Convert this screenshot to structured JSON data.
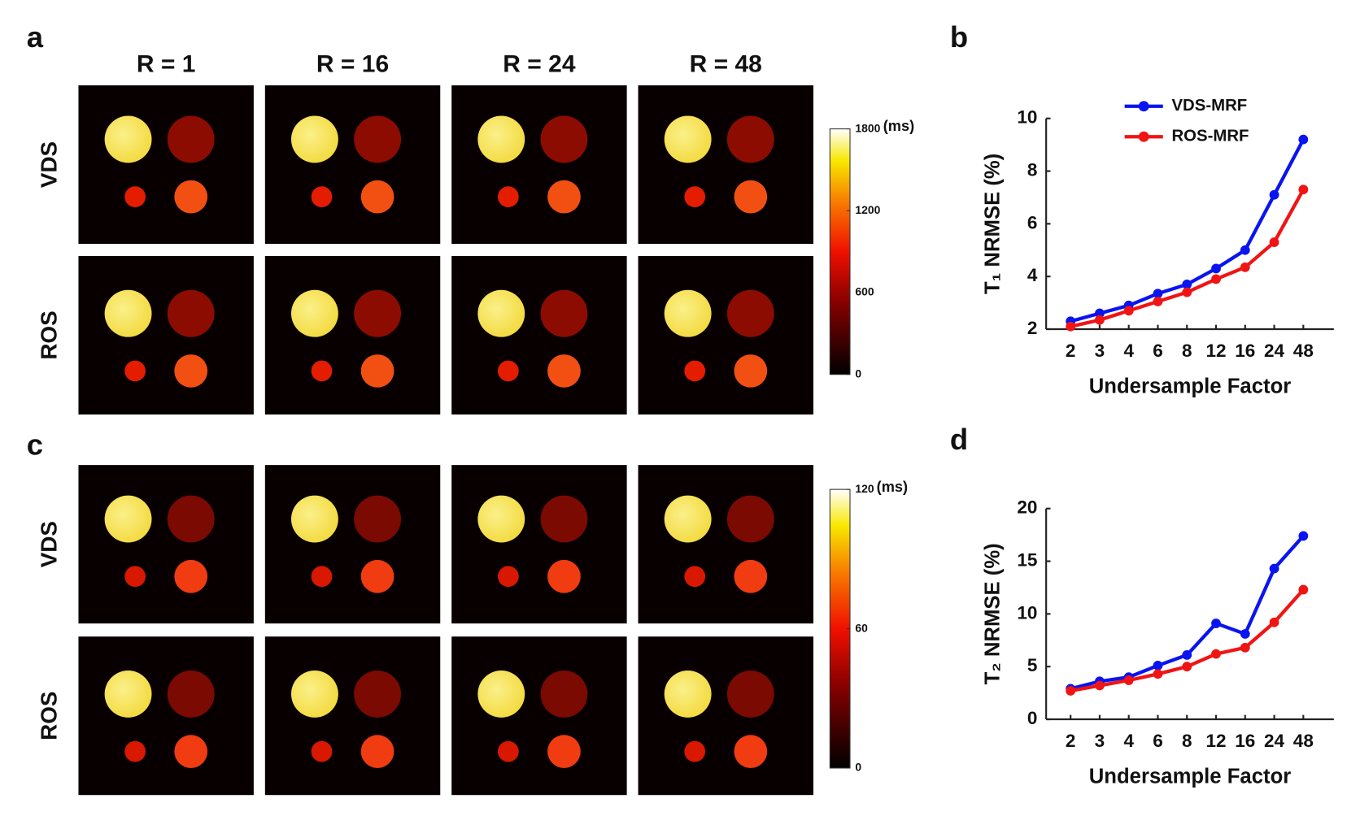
{
  "figure": {
    "panel_labels": [
      "a",
      "b",
      "c",
      "d"
    ],
    "column_headers": [
      "R = 1",
      "R = 16",
      "R = 24",
      "R = 48"
    ],
    "row_labels": [
      "VDS",
      "ROS"
    ],
    "colorbars": [
      {
        "ticks": [
          0,
          600,
          1200,
          1800
        ],
        "unit": "(ms)"
      },
      {
        "ticks": [
          0,
          60,
          120
        ],
        "unit": "(ms)"
      }
    ]
  },
  "chart_data": [
    {
      "type": "line",
      "xlabel": "Undersample Factor",
      "ylabel": "T₁ NRMSE (%)",
      "categories": [
        "2",
        "3",
        "4",
        "6",
        "8",
        "12",
        "16",
        "24",
        "48"
      ],
      "series": [
        {
          "name": "VDS-MRF",
          "color": "#0a14f0",
          "values": [
            2.3,
            2.6,
            2.9,
            3.35,
            3.7,
            4.3,
            5.0,
            7.1,
            9.2
          ]
        },
        {
          "name": "ROS-MRF",
          "color": "#f01414",
          "values": [
            2.1,
            2.35,
            2.7,
            3.05,
            3.4,
            3.9,
            4.35,
            5.3,
            7.3
          ]
        }
      ],
      "ylim": [
        2,
        10
      ],
      "yticks": [
        2,
        4,
        6,
        8,
        10
      ],
      "legend": "upper left"
    },
    {
      "type": "line",
      "xlabel": "Undersample Factor",
      "ylabel": "T₂ NRMSE (%)",
      "categories": [
        "2",
        "3",
        "4",
        "6",
        "8",
        "12",
        "16",
        "24",
        "48"
      ],
      "series": [
        {
          "color": "#0a14f0",
          "values": [
            2.9,
            3.6,
            4.0,
            5.1,
            6.1,
            9.1,
            8.1,
            14.3,
            17.4
          ]
        },
        {
          "color": "#f01414",
          "values": [
            2.7,
            3.2,
            3.7,
            4.3,
            5.0,
            6.2,
            6.8,
            9.2,
            12.3
          ]
        }
      ],
      "ylim": [
        0,
        20
      ],
      "yticks": [
        0,
        5,
        10,
        15,
        20
      ]
    }
  ]
}
